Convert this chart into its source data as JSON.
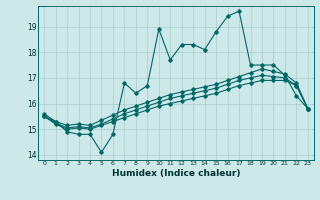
{
  "xlabel": "Humidex (Indice chaleur)",
  "bg_color": "#cce8e8",
  "grid_color": "#aacccc",
  "line_color": "#006666",
  "xlim": [
    -0.5,
    23.5
  ],
  "ylim": [
    13.8,
    19.8
  ],
  "yticks": [
    14,
    15,
    16,
    17,
    18,
    19
  ],
  "xticks": [
    0,
    1,
    2,
    3,
    4,
    5,
    6,
    7,
    8,
    9,
    10,
    11,
    12,
    13,
    14,
    15,
    16,
    17,
    18,
    19,
    20,
    21,
    22,
    23
  ],
  "series1": [
    15.6,
    15.3,
    14.9,
    14.8,
    14.8,
    14.1,
    14.8,
    16.8,
    16.4,
    16.7,
    18.9,
    17.7,
    18.3,
    18.3,
    18.1,
    18.8,
    19.4,
    19.6,
    17.5,
    17.5,
    17.5,
    17.1,
    16.3,
    15.8
  ],
  "series2": [
    15.5,
    15.3,
    15.15,
    15.2,
    15.15,
    15.35,
    15.55,
    15.75,
    15.9,
    16.05,
    16.2,
    16.35,
    16.45,
    16.55,
    16.65,
    16.75,
    16.9,
    17.05,
    17.2,
    17.35,
    17.25,
    17.15,
    16.8,
    15.8
  ],
  "series3": [
    15.5,
    15.25,
    15.05,
    15.1,
    15.05,
    15.2,
    15.4,
    15.6,
    15.75,
    15.9,
    16.05,
    16.2,
    16.3,
    16.4,
    16.5,
    16.6,
    16.75,
    16.9,
    17.0,
    17.1,
    17.05,
    17.0,
    16.7,
    15.8
  ],
  "series4": [
    15.5,
    15.2,
    15.0,
    15.05,
    15.0,
    15.15,
    15.3,
    15.45,
    15.6,
    15.75,
    15.9,
    16.0,
    16.1,
    16.2,
    16.3,
    16.4,
    16.55,
    16.7,
    16.8,
    16.9,
    16.9,
    16.9,
    16.7,
    15.8
  ]
}
